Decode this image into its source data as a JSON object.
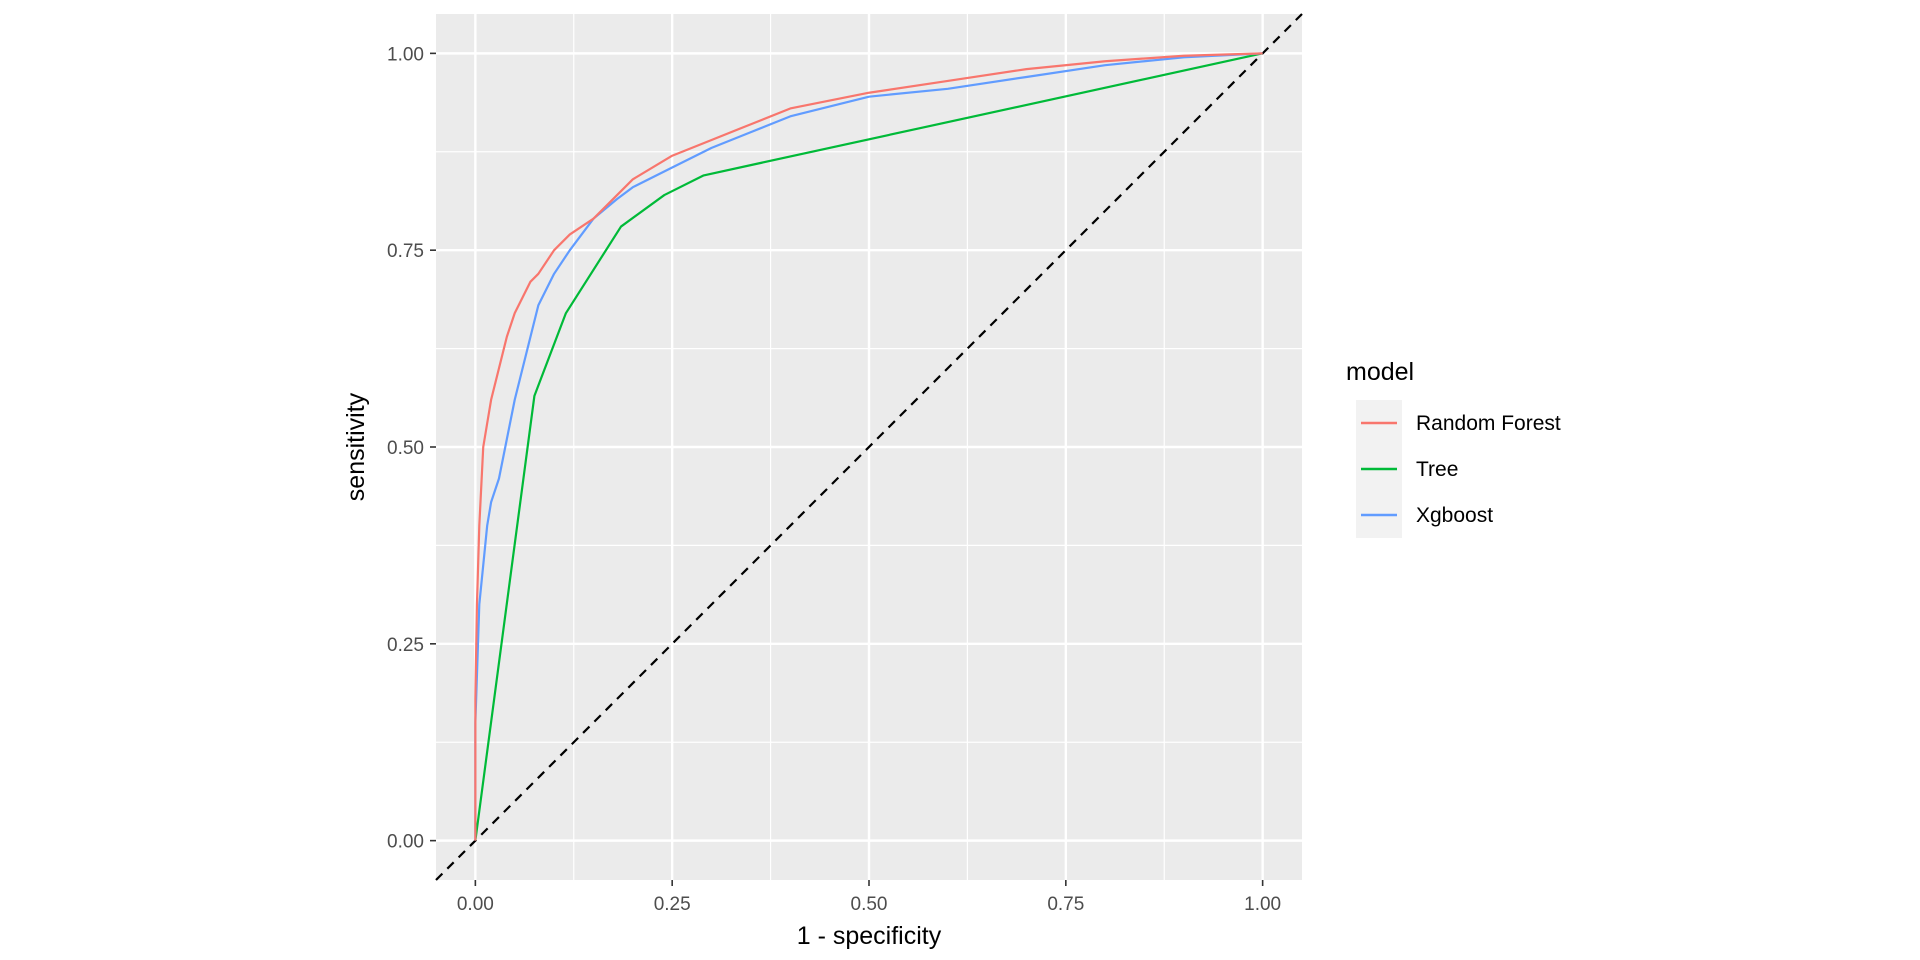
{
  "chart_data": {
    "type": "line",
    "xlabel": "1 - specificity",
    "ylabel": "sensitivity",
    "xlim": [
      -0.05,
      1.05
    ],
    "ylim": [
      -0.05,
      1.05
    ],
    "x_ticks": [
      "0.00",
      "0.25",
      "0.50",
      "0.75",
      "1.00"
    ],
    "y_ticks": [
      "0.00",
      "0.25",
      "0.50",
      "0.75",
      "1.00"
    ],
    "grid": true,
    "legend": {
      "title": "model",
      "position": "right",
      "entries": [
        {
          "label": "Random Forest",
          "color": "#F8766D"
        },
        {
          "label": "Tree",
          "color": "#00BA38"
        },
        {
          "label": "Xgboost",
          "color": "#619CFF"
        }
      ]
    },
    "reference_line": {
      "style": "dashed",
      "color": "#000000",
      "slope": 1,
      "intercept": 0
    },
    "series": [
      {
        "name": "Random Forest",
        "color": "#F8766D",
        "x": [
          0,
          0,
          0.002,
          0.005,
          0.01,
          0.015,
          0.02,
          0.03,
          0.04,
          0.05,
          0.06,
          0.07,
          0.08,
          0.1,
          0.12,
          0.15,
          0.18,
          0.2,
          0.25,
          0.3,
          0.35,
          0.4,
          0.5,
          0.6,
          0.7,
          0.8,
          0.9,
          1.0
        ],
        "y": [
          0,
          0.18,
          0.3,
          0.4,
          0.5,
          0.53,
          0.56,
          0.6,
          0.64,
          0.67,
          0.69,
          0.71,
          0.72,
          0.75,
          0.77,
          0.79,
          0.82,
          0.84,
          0.87,
          0.89,
          0.91,
          0.93,
          0.95,
          0.965,
          0.98,
          0.99,
          0.997,
          1.0
        ]
      },
      {
        "name": "Tree",
        "color": "#00BA38",
        "x": [
          0,
          0.075,
          0.115,
          0.185,
          0.24,
          0.29,
          1.0
        ],
        "y": [
          0,
          0.565,
          0.67,
          0.78,
          0.82,
          0.845,
          1.0
        ]
      },
      {
        "name": "Xgboost",
        "color": "#619CFF",
        "x": [
          0,
          0,
          0.005,
          0.01,
          0.015,
          0.02,
          0.03,
          0.04,
          0.05,
          0.06,
          0.07,
          0.08,
          0.1,
          0.12,
          0.15,
          0.18,
          0.2,
          0.25,
          0.3,
          0.35,
          0.4,
          0.5,
          0.6,
          0.7,
          0.8,
          0.9,
          1.0
        ],
        "y": [
          0,
          0.15,
          0.3,
          0.35,
          0.4,
          0.43,
          0.46,
          0.51,
          0.56,
          0.6,
          0.64,
          0.68,
          0.72,
          0.75,
          0.79,
          0.815,
          0.83,
          0.855,
          0.88,
          0.9,
          0.92,
          0.945,
          0.955,
          0.97,
          0.985,
          0.995,
          1.0
        ]
      }
    ]
  }
}
